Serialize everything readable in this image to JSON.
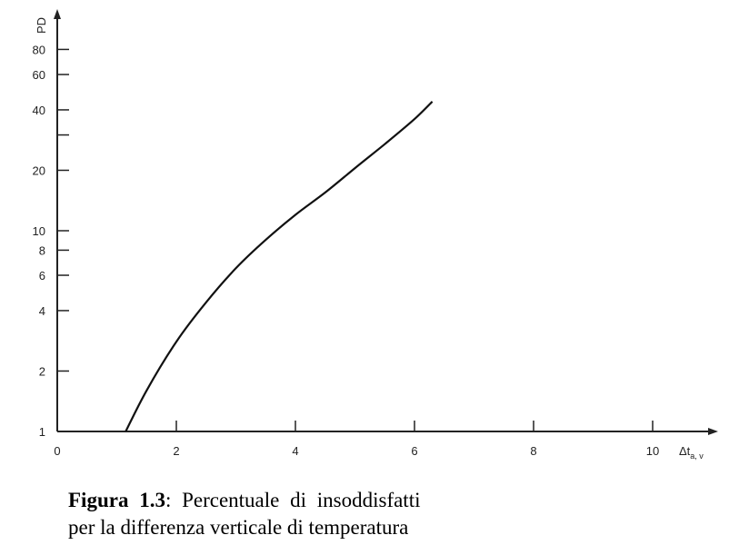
{
  "chart_data": {
    "type": "line",
    "title": "",
    "xlabel": {
      "main": "Δt",
      "subscript": "a, v"
    },
    "ylabel": "PD",
    "xlim": [
      0,
      11
    ],
    "ylim": [
      1,
      100
    ],
    "yscale": "log",
    "grid": false,
    "x_ticks": [
      0,
      2,
      4,
      6,
      8,
      10
    ],
    "x_tick_labels": [
      "0",
      "2",
      "4",
      "6",
      "8",
      "10"
    ],
    "y_ticks": [
      1,
      2,
      4,
      6,
      8,
      10,
      20,
      30,
      40,
      60,
      80
    ],
    "y_tick_labels": [
      "1",
      "2",
      "4",
      "6",
      "8",
      "10",
      "20",
      "",
      "40",
      "60",
      "80"
    ],
    "series": [
      {
        "x": [
          1.15,
          1.5,
          2.0,
          2.5,
          3.0,
          3.5,
          4.0,
          4.5,
          5.0,
          5.5,
          6.0,
          6.3
        ],
        "y": [
          1.0,
          1.6,
          2.8,
          4.4,
          6.5,
          9.0,
          12.0,
          15.5,
          20.5,
          27.0,
          36.0,
          44.0
        ]
      }
    ]
  },
  "caption": {
    "label": "Figura 1.3",
    "text_line1": ": Percentuale di insoddisfatti",
    "text_line2": "per la differenza verticale di temperatura"
  }
}
